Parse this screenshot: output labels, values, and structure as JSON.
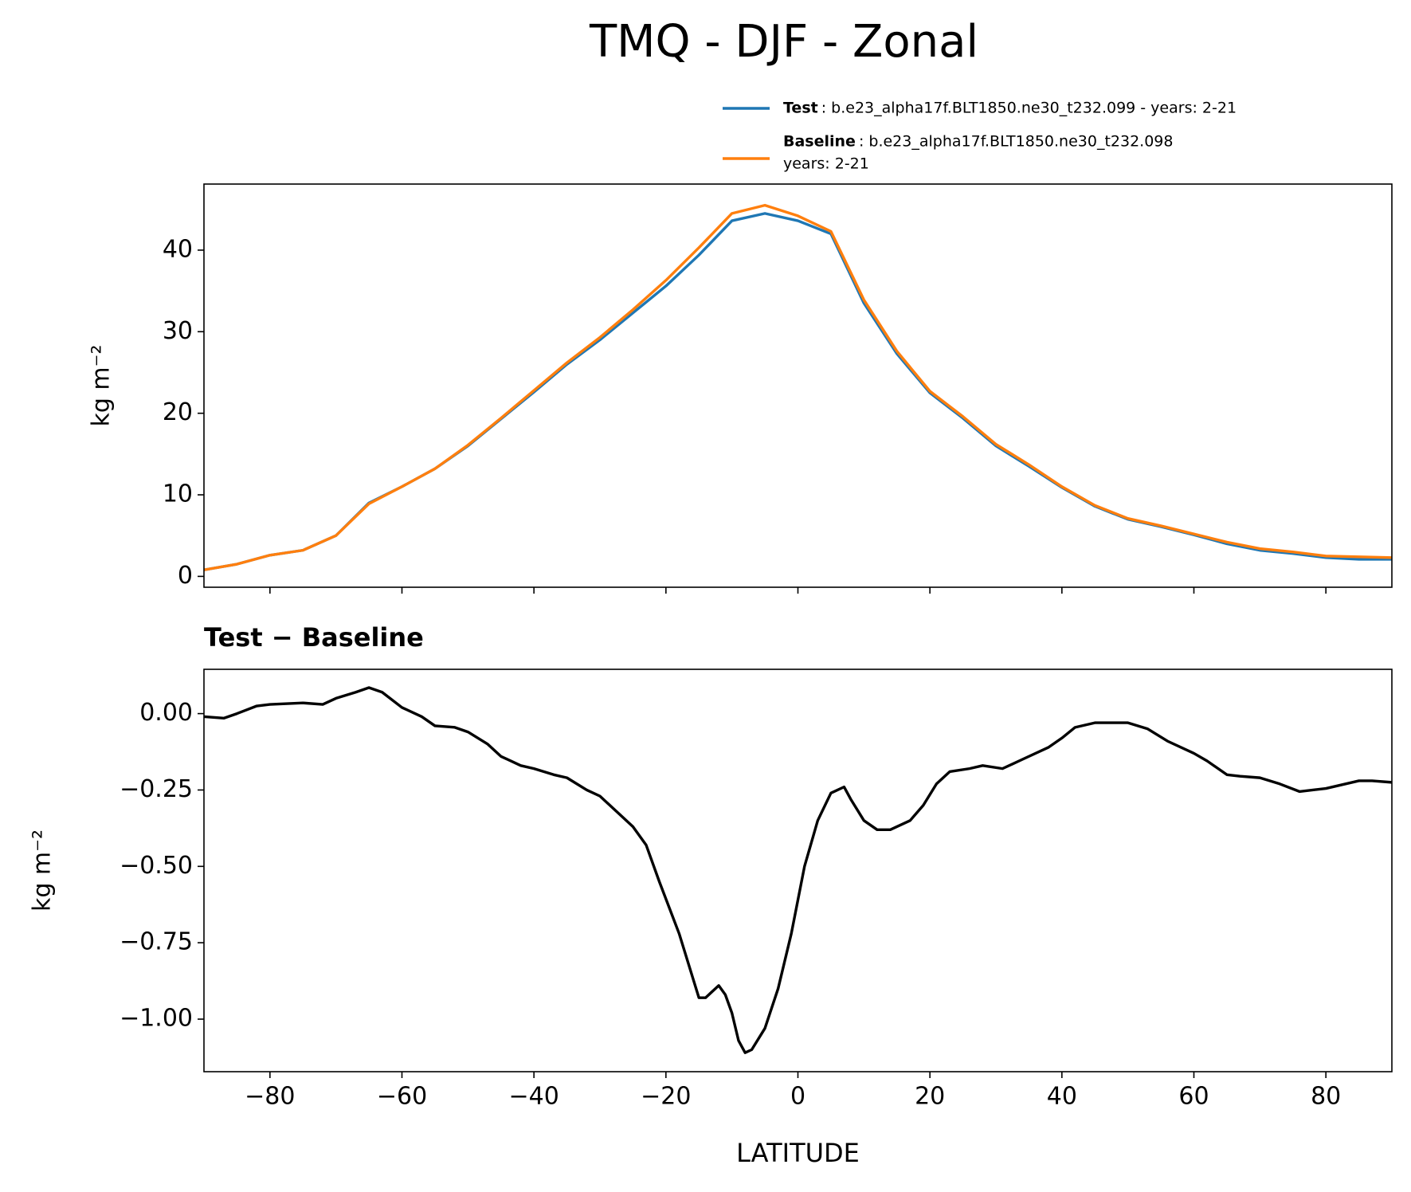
{
  "chart_data": [
    {
      "type": "line",
      "title": "TMQ - DJF - Zonal",
      "ylabel": "kg m⁻²",
      "x": [
        -90,
        -85,
        -80,
        -75,
        -70,
        -65,
        -60,
        -55,
        -50,
        -45,
        -40,
        -35,
        -30,
        -25,
        -20,
        -15,
        -10,
        -5,
        0,
        5,
        10,
        15,
        20,
        25,
        30,
        35,
        40,
        45,
        50,
        55,
        60,
        65,
        70,
        75,
        80,
        85,
        90
      ],
      "series": [
        {
          "name": "Test",
          "label": [
            ": b.e23_alpha17f.BLT1850.ne30_t232.099 - years: 2-21"
          ],
          "color": "#1f77b4",
          "values": [
            0.8,
            1.5,
            2.6,
            3.2,
            5.0,
            9.0,
            11.0,
            13.2,
            16.0,
            19.3,
            22.6,
            26.0,
            29.0,
            32.3,
            35.6,
            39.4,
            43.6,
            44.5,
            43.6,
            42.0,
            33.5,
            27.3,
            22.5,
            19.4,
            16.0,
            13.5,
            10.9,
            8.6,
            7.0,
            6.1,
            5.1,
            4.0,
            3.2,
            2.8,
            2.3,
            2.1,
            2.1
          ]
        },
        {
          "name": "Baseline",
          "label": [
            ": b.e23_alpha17f.BLT1850.ne30_t232.098",
            "years: 2-21"
          ],
          "color": "#ff7f0e",
          "values": [
            0.8,
            1.5,
            2.6,
            3.2,
            5.0,
            8.9,
            11.0,
            13.2,
            16.1,
            19.4,
            22.8,
            26.2,
            29.3,
            32.7,
            36.3,
            40.3,
            44.5,
            45.5,
            44.2,
            42.3,
            33.9,
            27.6,
            22.7,
            19.6,
            16.2,
            13.7,
            11.0,
            8.7,
            7.1,
            6.2,
            5.2,
            4.2,
            3.4,
            3.0,
            2.5,
            2.4,
            2.3
          ]
        }
      ],
      "xlim": [
        -90,
        90
      ],
      "ylim": [
        -1.33,
        48.1
      ],
      "yticks": [
        0,
        10,
        20,
        30,
        40
      ],
      "legend": "upper right"
    },
    {
      "type": "line",
      "title": "Test − Baseline",
      "ylabel": "kg m⁻²",
      "xlabel": "LATITUDE",
      "x": [
        -90,
        -87,
        -85,
        -82,
        -80,
        -75,
        -72,
        -70,
        -67,
        -65,
        -63,
        -60,
        -57,
        -55,
        -52,
        -50,
        -47,
        -45,
        -42,
        -40,
        -37,
        -35,
        -32,
        -30,
        -27,
        -25,
        -23,
        -21,
        -18,
        -15,
        -14,
        -12,
        -11,
        -10,
        -9,
        -8,
        -7,
        -5,
        -3,
        -1,
        1,
        3,
        5,
        7,
        8,
        10,
        12,
        14,
        17,
        19,
        21,
        23,
        26,
        28,
        31,
        34,
        38,
        40,
        42,
        45,
        50,
        53,
        56,
        60,
        62,
        65,
        67,
        70,
        73,
        76,
        80,
        85,
        87,
        90
      ],
      "series": [
        {
          "color": "#000000",
          "values": [
            -0.01,
            -0.015,
            0.0,
            0.025,
            0.03,
            0.035,
            0.03,
            0.05,
            0.07,
            0.085,
            0.07,
            0.02,
            -0.01,
            -0.04,
            -0.045,
            -0.06,
            -0.1,
            -0.14,
            -0.17,
            -0.18,
            -0.2,
            -0.21,
            -0.25,
            -0.27,
            -0.33,
            -0.37,
            -0.43,
            -0.55,
            -0.72,
            -0.93,
            -0.93,
            -0.89,
            -0.92,
            -0.98,
            -1.07,
            -1.11,
            -1.1,
            -1.03,
            -0.9,
            -0.72,
            -0.5,
            -0.35,
            -0.26,
            -0.24,
            -0.28,
            -0.35,
            -0.38,
            -0.38,
            -0.35,
            -0.3,
            -0.23,
            -0.19,
            -0.18,
            -0.17,
            -0.18,
            -0.15,
            -0.11,
            -0.08,
            -0.045,
            -0.03,
            -0.03,
            -0.05,
            -0.09,
            -0.13,
            -0.155,
            -0.2,
            -0.205,
            -0.21,
            -0.23,
            -0.255,
            -0.245,
            -0.22,
            -0.22,
            -0.225
          ]
        }
      ],
      "xlim": [
        -90,
        90
      ],
      "ylim": [
        -1.172,
        0.145
      ],
      "yticks": [
        {
          "value": 0,
          "label": "0.00"
        },
        {
          "value": -0.25,
          "label": "−0.25"
        },
        {
          "value": -0.5,
          "label": "−0.50"
        },
        {
          "value": -0.75,
          "label": "−0.75"
        },
        {
          "value": -1,
          "label": "−1.00"
        }
      ],
      "xticks": [
        {
          "value": -80,
          "label": "−80"
        },
        {
          "value": -60,
          "label": "−60"
        },
        {
          "value": -40,
          "label": "−40"
        },
        {
          "value": -20,
          "label": "−20"
        },
        0,
        20,
        40,
        60,
        80
      ]
    }
  ]
}
